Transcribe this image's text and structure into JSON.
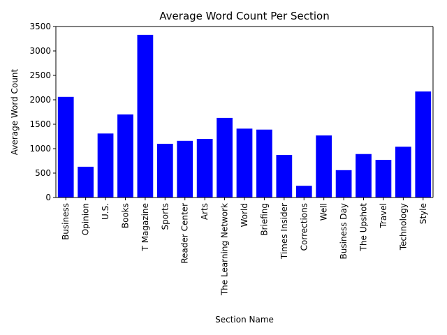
{
  "chart_data": {
    "type": "bar",
    "title": "Average Word Count Per Section",
    "xlabel": "Section Name",
    "ylabel": "Average Word Count",
    "ylim": [
      0,
      3500
    ],
    "yticks": [
      0,
      500,
      1000,
      1500,
      2000,
      2500,
      3000,
      3500
    ],
    "grid": false,
    "bar_color": "#0000ff",
    "categories": [
      "Business",
      "Opinion",
      "U.S.",
      "Books",
      "T Magazine",
      "Sports",
      "Reader Center",
      "Arts",
      "The Learning Network",
      "World",
      "Briefing",
      "Times Insider",
      "Corrections",
      "Well",
      "Business Day",
      "The Upshot",
      "Travel",
      "Technology",
      "Style"
    ],
    "values": [
      2060,
      630,
      1310,
      1700,
      3330,
      1100,
      1160,
      1200,
      1630,
      1410,
      1390,
      870,
      240,
      1270,
      560,
      890,
      770,
      1040,
      2170
    ]
  }
}
